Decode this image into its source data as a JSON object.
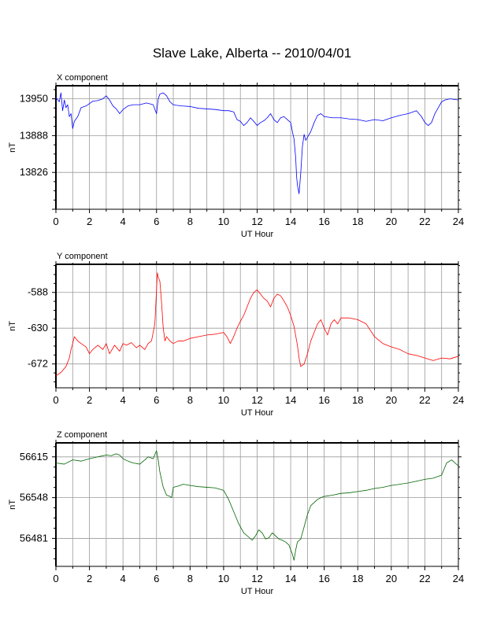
{
  "title": "Slave Lake, Alberta -- 2010/04/01",
  "chart_data": [
    {
      "type": "line",
      "panel_label": "X component",
      "xlabel": "UT Hour",
      "ylabel": "nT",
      "xlim": [
        0,
        24
      ],
      "ylim": [
        13764,
        13972
      ],
      "xticks": [
        0,
        2,
        4,
        6,
        8,
        10,
        12,
        14,
        16,
        18,
        20,
        22,
        24
      ],
      "yticks": [
        13826,
        13888,
        13950
      ],
      "grid": true,
      "series": [
        {
          "color": "#0000ff",
          "x": [
            0,
            0.2,
            0.3,
            0.4,
            0.5,
            0.6,
            0.7,
            0.8,
            0.9,
            1.0,
            1.1,
            1.3,
            1.5,
            1.8,
            2.0,
            2.2,
            2.5,
            2.8,
            3.0,
            3.2,
            3.4,
            3.6,
            3.8,
            4.0,
            4.3,
            4.6,
            5.0,
            5.4,
            5.8,
            6.0,
            6.1,
            6.2,
            6.4,
            6.6,
            6.8,
            7.0,
            7.2,
            7.5,
            8.0,
            8.5,
            9.0,
            9.5,
            10.0,
            10.3,
            10.6,
            10.8,
            11.0,
            11.2,
            11.4,
            11.6,
            11.8,
            12.0,
            12.2,
            12.4,
            12.6,
            12.8,
            13.0,
            13.2,
            13.4,
            13.6,
            13.8,
            14.0,
            14.1,
            14.2,
            14.3,
            14.35,
            14.4,
            14.5,
            14.6,
            14.7,
            14.8,
            14.9,
            15.0,
            15.2,
            15.4,
            15.6,
            15.8,
            16.0,
            16.5,
            17.0,
            17.5,
            18.0,
            18.5,
            19.0,
            19.5,
            20.0,
            20.5,
            21.0,
            21.5,
            21.8,
            22.0,
            22.2,
            22.4,
            22.6,
            22.8,
            23.0,
            23.2,
            23.5,
            24.0
          ],
          "values": [
            13952,
            13945,
            13960,
            13930,
            13948,
            13935,
            13940,
            13920,
            13925,
            13900,
            13912,
            13920,
            13935,
            13938,
            13942,
            13946,
            13947,
            13950,
            13955,
            13948,
            13938,
            13933,
            13925,
            13932,
            13938,
            13940,
            13940,
            13943,
            13940,
            13925,
            13950,
            13958,
            13960,
            13955,
            13945,
            13940,
            13939,
            13938,
            13937,
            13934,
            13933,
            13932,
            13930,
            13930,
            13928,
            13915,
            13912,
            13905,
            13910,
            13918,
            13912,
            13905,
            13910,
            13913,
            13918,
            13925,
            13915,
            13910,
            13918,
            13920,
            13915,
            13910,
            13895,
            13882,
            13850,
            13820,
            13805,
            13790,
            13825,
            13870,
            13890,
            13880,
            13885,
            13895,
            13910,
            13922,
            13925,
            13920,
            13918,
            13918,
            13916,
            13915,
            13912,
            13915,
            13913,
            13918,
            13922,
            13925,
            13930,
            13920,
            13910,
            13905,
            13910,
            13925,
            13935,
            13945,
            13948,
            13950,
            13948
          ]
        }
      ]
    },
    {
      "type": "line",
      "panel_label": "Y component",
      "xlabel": "UT Hour",
      "ylabel": "nT",
      "xlim": [
        0,
        24
      ],
      "ylim": [
        -700,
        -555
      ],
      "xticks": [
        0,
        2,
        4,
        6,
        8,
        10,
        12,
        14,
        16,
        18,
        20,
        22,
        24
      ],
      "yticks": [
        -672,
        -630,
        -588
      ],
      "grid": true,
      "series": [
        {
          "color": "#ff0000",
          "x": [
            0,
            0.3,
            0.6,
            0.8,
            0.9,
            1.0,
            1.1,
            1.3,
            1.5,
            1.8,
            2.0,
            2.2,
            2.5,
            2.8,
            3.0,
            3.2,
            3.5,
            3.8,
            4.0,
            4.2,
            4.5,
            4.8,
            5.0,
            5.3,
            5.5,
            5.7,
            5.9,
            6.0,
            6.05,
            6.1,
            6.2,
            6.3,
            6.4,
            6.5,
            6.6,
            6.8,
            7.0,
            7.3,
            7.6,
            8.0,
            8.5,
            9.0,
            9.5,
            10.0,
            10.2,
            10.4,
            10.6,
            10.8,
            11.0,
            11.2,
            11.4,
            11.6,
            11.8,
            12.0,
            12.2,
            12.4,
            12.6,
            12.8,
            13.0,
            13.2,
            13.4,
            13.6,
            13.8,
            14.0,
            14.2,
            14.4,
            14.5,
            14.6,
            14.8,
            15.0,
            15.2,
            15.4,
            15.6,
            15.8,
            16.0,
            16.2,
            16.4,
            16.6,
            16.8,
            17.0,
            17.5,
            18.0,
            18.5,
            19.0,
            19.5,
            20.0,
            20.5,
            21.0,
            21.5,
            22.0,
            22.5,
            23.0,
            23.5,
            24.0
          ],
          "values": [
            -686,
            -682,
            -675,
            -665,
            -655,
            -648,
            -640,
            -645,
            -648,
            -652,
            -660,
            -655,
            -650,
            -655,
            -648,
            -660,
            -650,
            -657,
            -648,
            -650,
            -647,
            -653,
            -650,
            -655,
            -648,
            -645,
            -625,
            -585,
            -565,
            -570,
            -575,
            -600,
            -630,
            -645,
            -640,
            -645,
            -648,
            -645,
            -645,
            -642,
            -640,
            -638,
            -637,
            -635,
            -640,
            -648,
            -640,
            -630,
            -622,
            -615,
            -605,
            -595,
            -588,
            -585,
            -590,
            -595,
            -598,
            -605,
            -595,
            -590,
            -592,
            -598,
            -605,
            -615,
            -628,
            -650,
            -665,
            -675,
            -672,
            -660,
            -645,
            -635,
            -625,
            -620,
            -630,
            -638,
            -625,
            -620,
            -625,
            -618,
            -618,
            -620,
            -625,
            -640,
            -648,
            -652,
            -655,
            -660,
            -662,
            -665,
            -668,
            -665,
            -666,
            -663
          ]
        }
      ]
    },
    {
      "type": "line",
      "panel_label": "Z component",
      "xlabel": "UT Hour",
      "ylabel": "nT",
      "xlim": [
        0,
        24
      ],
      "ylim": [
        56435,
        56638
      ],
      "xticks": [
        0,
        2,
        4,
        6,
        8,
        10,
        12,
        14,
        16,
        18,
        20,
        22,
        24
      ],
      "yticks": [
        56481,
        56548,
        56615
      ],
      "grid": true,
      "series": [
        {
          "color": "#006400",
          "x": [
            0,
            0.5,
            1.0,
            1.5,
            2.0,
            2.5,
            3.0,
            3.3,
            3.6,
            3.8,
            4.0,
            4.3,
            4.6,
            5.0,
            5.3,
            5.5,
            5.8,
            5.95,
            6.0,
            6.1,
            6.2,
            6.4,
            6.6,
            6.8,
            6.9,
            7.0,
            7.3,
            7.6,
            8.0,
            8.5,
            9.0,
            9.5,
            10.0,
            10.3,
            10.6,
            10.9,
            11.2,
            11.5,
            11.7,
            11.9,
            12.1,
            12.3,
            12.5,
            12.7,
            12.9,
            13.1,
            13.3,
            13.5,
            13.7,
            13.9,
            14.1,
            14.2,
            14.3,
            14.4,
            14.6,
            14.8,
            15.0,
            15.2,
            15.4,
            15.6,
            15.8,
            16.0,
            16.5,
            17.0,
            17.5,
            18.0,
            18.5,
            19.0,
            19.5,
            20.0,
            20.5,
            21.0,
            21.5,
            22.0,
            22.5,
            23.0,
            23.3,
            23.6,
            24.0
          ],
          "values": [
            56605,
            56603,
            56610,
            56608,
            56612,
            56615,
            56618,
            56617,
            56620,
            56618,
            56612,
            56608,
            56605,
            56603,
            56610,
            56615,
            56612,
            56622,
            56625,
            56610,
            56590,
            56565,
            56552,
            56550,
            56548,
            56565,
            56567,
            56570,
            56568,
            56566,
            56565,
            56564,
            56560,
            56545,
            56525,
            56505,
            56490,
            56483,
            56478,
            56485,
            56495,
            56490,
            56480,
            56482,
            56490,
            56485,
            56480,
            56478,
            56475,
            56470,
            56455,
            56445,
            56462,
            56475,
            56480,
            56500,
            56520,
            56535,
            56540,
            56545,
            56548,
            56550,
            56552,
            56555,
            56556,
            56558,
            56560,
            56563,
            56565,
            56568,
            56570,
            56572,
            56575,
            56578,
            56580,
            56585,
            56605,
            56610,
            56600
          ]
        }
      ]
    }
  ]
}
